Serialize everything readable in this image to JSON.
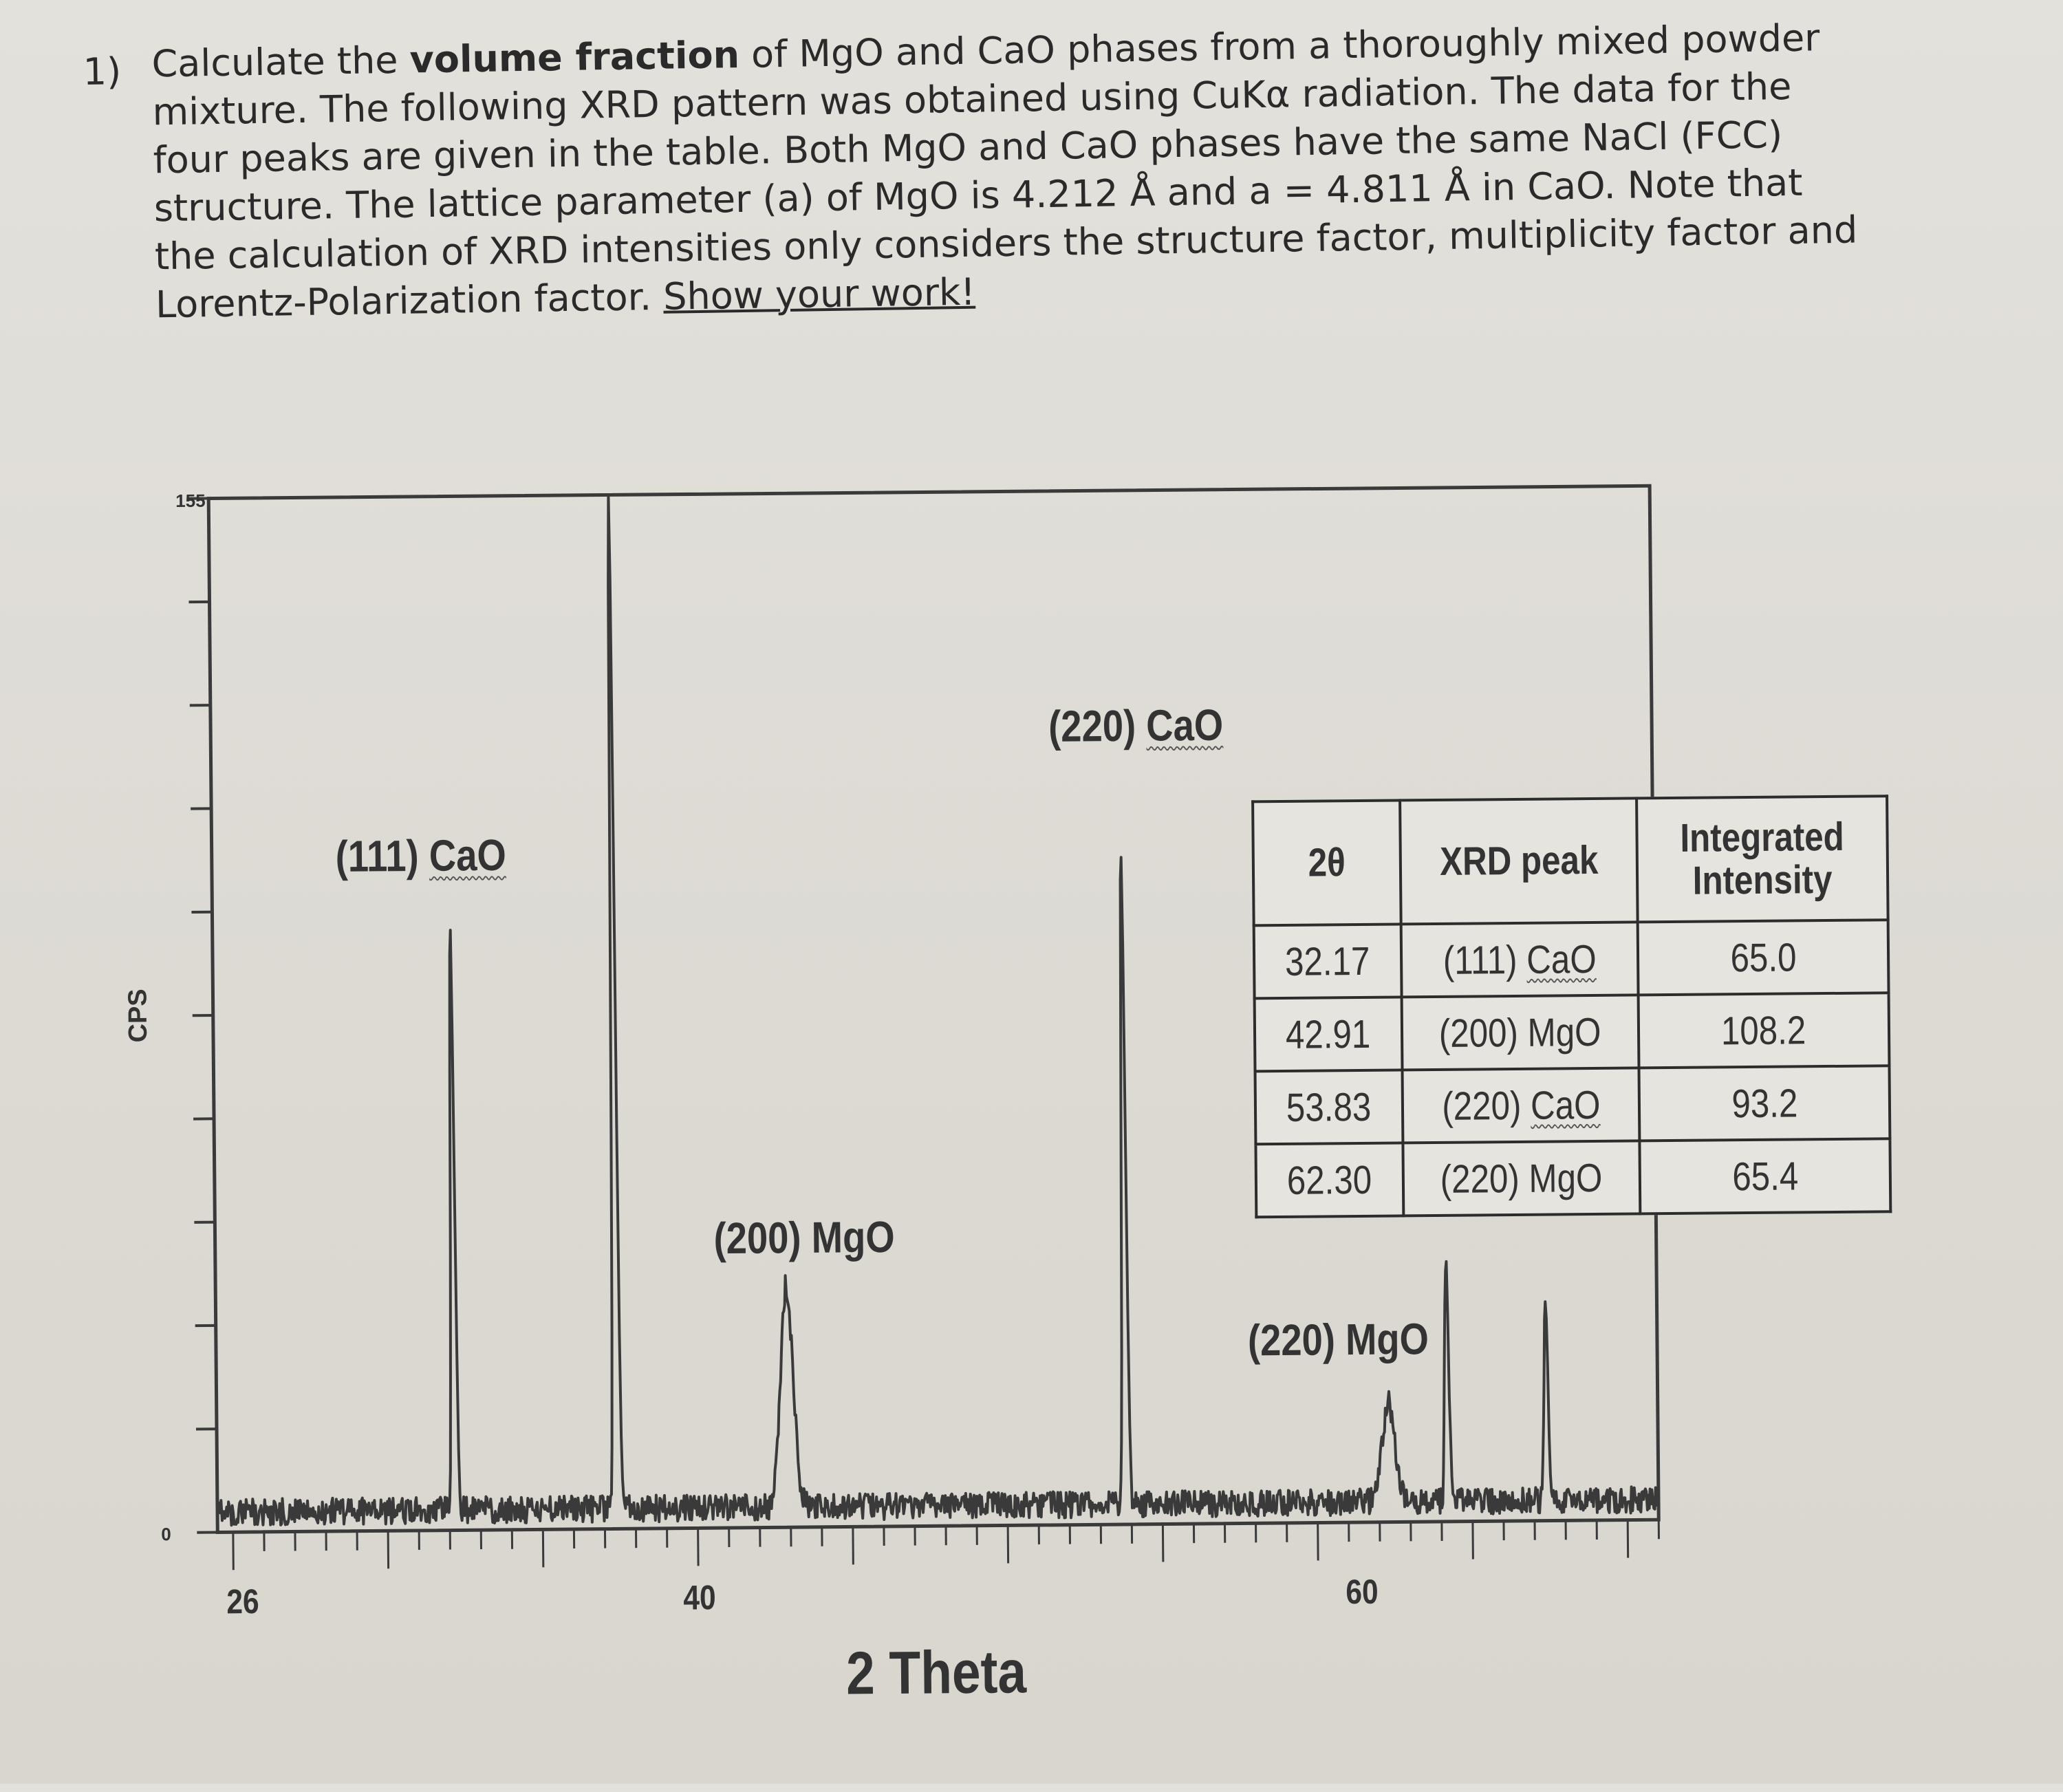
{
  "question": {
    "number": "1)",
    "text_before_bold": "Calculate the ",
    "bold": "volume fraction",
    "text_after_bold": " of MgO and CaO phases from a thoroughly mixed powder mixture. The following XRD pattern was obtained using CuKα radiation. The data for the four peaks are given in the table. Both MgO and CaO phases have the same NaCl (FCC) structure. The lattice parameter (a) of MgO is 4.212 Å and a = 4.811 Å in CaO. Note that the calculation of XRD intensities only considers the structure factor, multiplicity factor and Lorentz-Polarization factor. ",
    "underlined": "Show your work!"
  },
  "table": {
    "headers": [
      "2θ",
      "XRD peak",
      "Integrated Intensity"
    ],
    "rows": [
      {
        "two_theta": "32.17",
        "hkl": "(111)",
        "phase": "CaO",
        "intensity": "65.0"
      },
      {
        "two_theta": "42.91",
        "hkl": "(200)",
        "phase": "MgO",
        "intensity": "108.2"
      },
      {
        "two_theta": "53.83",
        "hkl": "(220)",
        "phase": "CaO",
        "intensity": "93.2"
      },
      {
        "two_theta": "62.30",
        "hkl": "(220)",
        "phase": "MgO",
        "intensity": "65.4"
      }
    ]
  },
  "chart_data": {
    "type": "line",
    "title": "",
    "xlabel": "2 Theta",
    "ylabel": "CPS",
    "xlim": [
      24.5,
      71
    ],
    "ylim": [
      0,
      155
    ],
    "x_tick_labels": [
      "26",
      "40",
      "60"
    ],
    "y_tick_labels": [
      "0",
      "155"
    ],
    "grid": false,
    "annotations": [
      {
        "text": "(111) CaO",
        "x": 32.17
      },
      {
        "text": "(200) MgO",
        "x": 42.91
      },
      {
        "text": "(220) CaO",
        "x": 53.83
      },
      {
        "text": "(220) MgO",
        "x": 62.3
      }
    ],
    "peaks": [
      {
        "x": 32.17,
        "y": 88,
        "label": "(111) CaO"
      },
      {
        "x": 37.4,
        "y": 155,
        "label": "off-scale (unlabeled)"
      },
      {
        "x": 42.91,
        "y": 33,
        "label": "(200) MgO"
      },
      {
        "x": 53.83,
        "y": 100,
        "label": "(220) CaO"
      },
      {
        "x": 62.3,
        "y": 15,
        "label": "(220) MgO"
      },
      {
        "x": 64.2,
        "y": 37,
        "label": "unlabeled"
      },
      {
        "x": 67.4,
        "y": 29,
        "label": "unlabeled"
      }
    ],
    "baseline_cps": 3
  }
}
